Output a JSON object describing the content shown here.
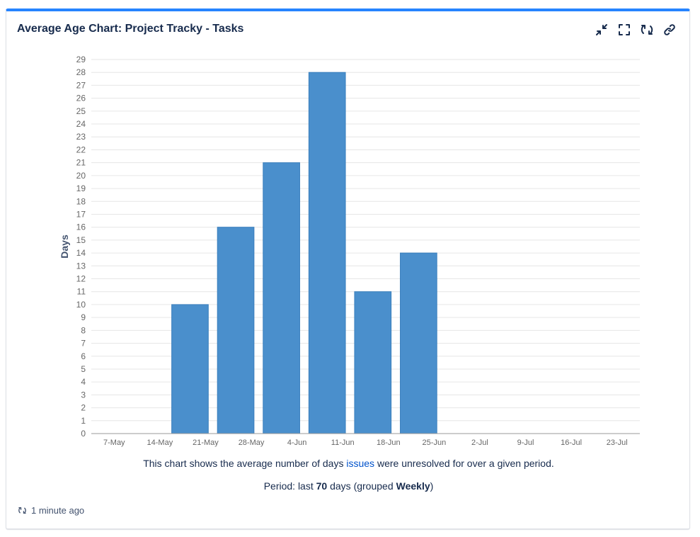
{
  "gadget": {
    "title": "Average Age Chart: Project Tracky - Tasks",
    "accent_color": "#2684ff",
    "toolbar": [
      {
        "icon": "minimize-icon",
        "name": "minimize-button"
      },
      {
        "icon": "fullscreen-icon",
        "name": "fullscreen-button"
      },
      {
        "icon": "refresh-icon",
        "name": "refresh-button"
      },
      {
        "icon": "link-icon",
        "name": "link-button"
      }
    ]
  },
  "chart_data": {
    "type": "bar",
    "categories": [
      "7-May",
      "14-May",
      "21-May",
      "28-May",
      "4-Jun",
      "11-Jun",
      "18-Jun",
      "25-Jun",
      "2-Jul",
      "9-Jul",
      "16-Jul",
      "23-Jul"
    ],
    "values": [
      0,
      0,
      10,
      16,
      21,
      28,
      11,
      14,
      0,
      0,
      0,
      0
    ],
    "xlabel": "",
    "ylabel": "Days",
    "ylim": [
      0,
      29
    ],
    "yticks": [
      0,
      1,
      2,
      3,
      4,
      5,
      6,
      7,
      8,
      9,
      10,
      11,
      12,
      13,
      14,
      15,
      16,
      17,
      18,
      19,
      20,
      21,
      22,
      23,
      24,
      25,
      26,
      27,
      28,
      29
    ],
    "bar_color": "#4a8fcc",
    "grid": true,
    "legend": "none"
  },
  "caption": {
    "line1_before": "This chart shows the average number of days",
    "line1_link": "issues",
    "line1_after": "were unresolved for over a given period.",
    "line2_before": "Period: last",
    "line2_days": "70",
    "line2_middle": "days (grouped",
    "line2_group": "Weekly",
    "line2_after": ")"
  },
  "footer": {
    "updated": "1 minute ago"
  }
}
